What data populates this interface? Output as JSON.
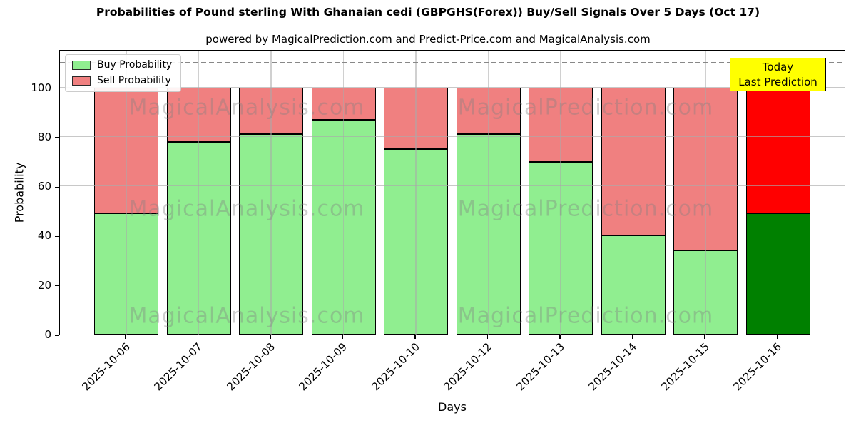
{
  "title": "Probabilities of Pound sterling With Ghanaian cedi (GBPGHS(Forex)) Buy/Sell Signals Over 5 Days (Oct 17)",
  "subtitle": "powered by MagicalPrediction.com and Predict-Price.com and MagicalAnalysis.com",
  "legend": {
    "items": [
      {
        "label": "Buy Probability",
        "color": "#90EE90"
      },
      {
        "label": "Sell Probability",
        "color": "#F08080"
      }
    ]
  },
  "annotation": {
    "line1": "Today",
    "line2": "Last Prediction",
    "bg_color": "#FFFF00"
  },
  "watermarks": {
    "left": "MagicalAnalysis.com",
    "right": "MagicalPrediction.com"
  },
  "chart_data": {
    "type": "bar",
    "stacked": true,
    "title": "Probabilities of Pound sterling With Ghanaian cedi (GBPGHS(Forex)) Buy/Sell Signals Over 5 Days (Oct 17)",
    "xlabel": "Days",
    "ylabel": "Probability",
    "ylim": [
      0,
      115.5
    ],
    "yticks": [
      0,
      20,
      40,
      60,
      80,
      100
    ],
    "grid": true,
    "legend_position": "upper left",
    "dashed_hline": 110,
    "categories": [
      "2025-10-06",
      "2025-10-07",
      "2025-10-08",
      "2025-10-09",
      "2025-10-10",
      "2025-10-12",
      "2025-10-13",
      "2025-10-14",
      "2025-10-15",
      "2025-10-16"
    ],
    "series": [
      {
        "name": "Buy Probability",
        "color": "#90EE90",
        "last_bar_color": "#008000",
        "values": [
          49,
          78,
          81,
          87,
          75,
          81,
          70,
          40,
          34,
          49
        ]
      },
      {
        "name": "Sell Probability",
        "color": "#F08080",
        "last_bar_color": "#FF0000",
        "values": [
          51,
          22,
          19,
          13,
          25,
          19,
          30,
          60,
          66,
          51
        ]
      }
    ]
  }
}
